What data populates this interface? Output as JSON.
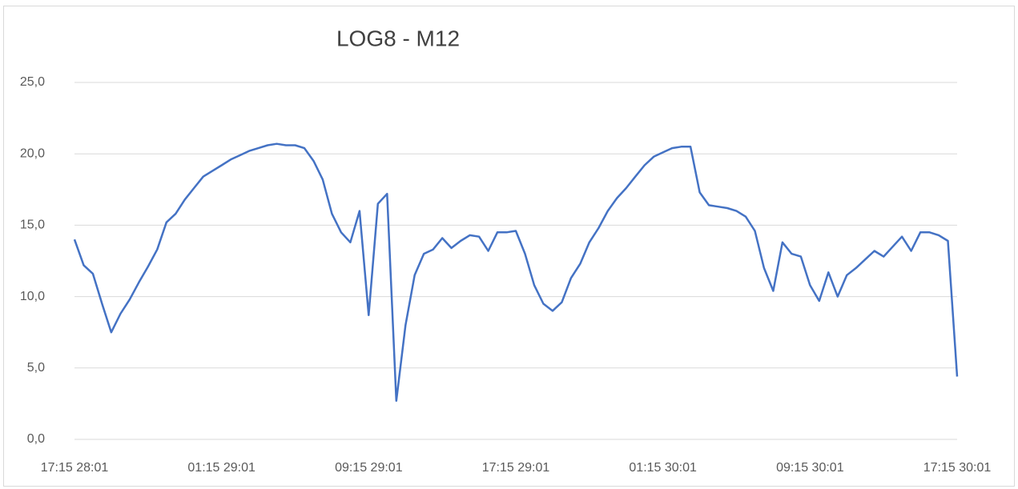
{
  "chart_data": {
    "type": "line",
    "title": "LOG8 - M12",
    "categories": [
      "17:15 28:01",
      null,
      null,
      null,
      null,
      null,
      null,
      null,
      null,
      null,
      null,
      null,
      null,
      null,
      null,
      null,
      "01:15 29:01",
      null,
      null,
      null,
      null,
      null,
      null,
      null,
      null,
      null,
      null,
      null,
      null,
      null,
      null,
      null,
      "09:15 29:01",
      null,
      null,
      null,
      null,
      null,
      null,
      null,
      null,
      null,
      null,
      null,
      null,
      null,
      null,
      null,
      "17:15 29:01",
      null,
      null,
      null,
      null,
      null,
      null,
      null,
      null,
      null,
      null,
      null,
      null,
      null,
      null,
      null,
      "01:15 30:01",
      null,
      null,
      null,
      null,
      null,
      null,
      null,
      null,
      null,
      null,
      null,
      null,
      null,
      null,
      null,
      "09:15 30:01",
      null,
      null,
      null,
      null,
      null,
      null,
      null,
      null,
      null,
      null,
      null,
      null,
      null,
      null,
      null,
      "17:15 30:01"
    ],
    "series": [
      {
        "color": "#4472c4",
        "values": [
          14.0,
          12.2,
          11.6,
          9.5,
          7.5,
          8.8,
          9.8,
          11.0,
          12.1,
          13.3,
          15.2,
          15.8,
          16.8,
          17.6,
          18.4,
          18.8,
          19.2,
          19.6,
          19.9,
          20.2,
          20.4,
          20.6,
          20.7,
          20.6,
          20.6,
          20.4,
          19.5,
          18.2,
          15.8,
          14.5,
          13.8,
          16.0,
          8.7,
          16.5,
          17.2,
          2.7,
          8.0,
          11.5,
          13.0,
          13.3,
          14.1,
          13.4,
          13.9,
          14.3,
          14.2,
          13.2,
          14.5,
          14.5,
          14.6,
          13.0,
          10.8,
          9.5,
          9.0,
          9.6,
          11.3,
          12.3,
          13.8,
          14.8,
          16.0,
          16.9,
          17.6,
          18.4,
          19.2,
          19.8,
          20.1,
          20.4,
          20.5,
          20.5,
          17.3,
          16.4,
          16.3,
          16.2,
          16.0,
          15.6,
          14.6,
          12.0,
          10.4,
          13.8,
          13.0,
          12.8,
          10.8,
          9.7,
          11.7,
          10.0,
          11.5,
          12.0,
          12.6,
          13.2,
          12.8,
          13.5,
          14.2,
          13.2,
          14.5,
          14.5,
          14.3,
          13.9,
          4.4
        ]
      }
    ],
    "ylim": [
      0,
      25
    ],
    "yticks": [
      {
        "value": 0,
        "label": "0,0"
      },
      {
        "value": 5,
        "label": "5,0"
      },
      {
        "value": 10,
        "label": "10,0"
      },
      {
        "value": 15,
        "label": "15,0"
      },
      {
        "value": 20,
        "label": "20,0"
      },
      {
        "value": 25,
        "label": "25,0"
      }
    ],
    "grid": true
  }
}
